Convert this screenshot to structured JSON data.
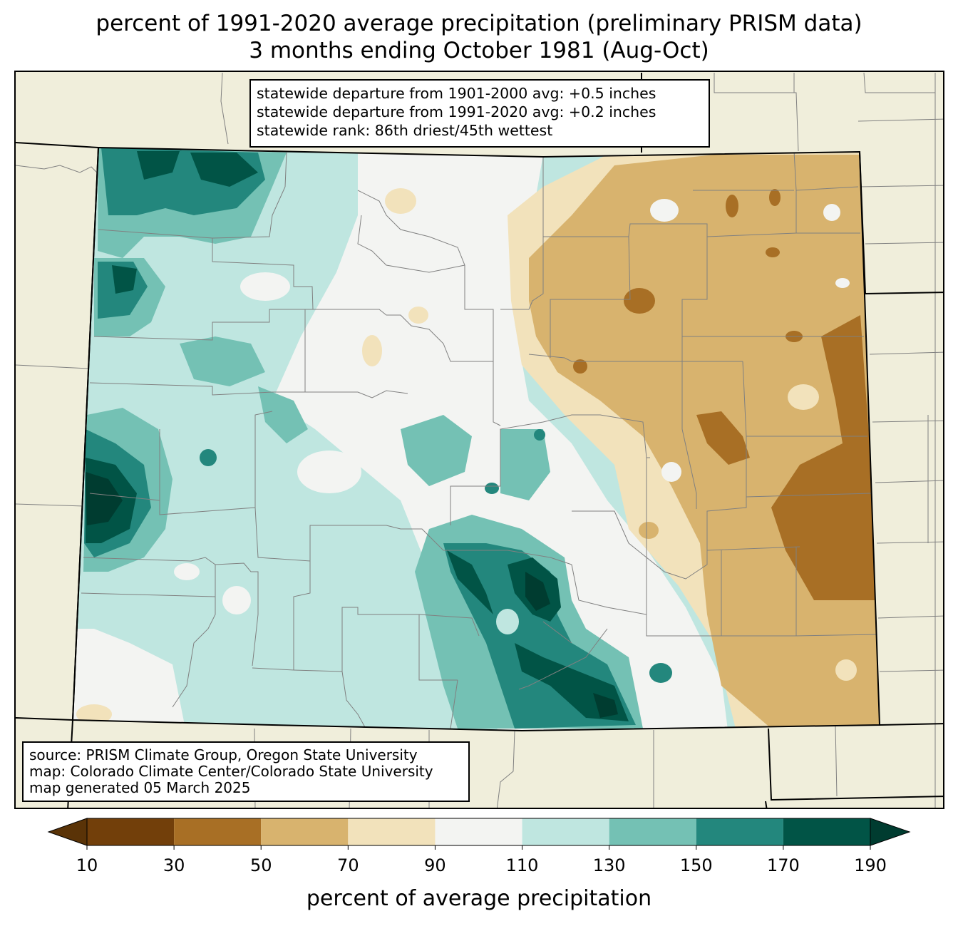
{
  "title": {
    "line1": "percent of 1991-2020 average precipitation (preliminary PRISM data)",
    "line2": "3 months ending October 1981 (Aug-Oct)"
  },
  "stats": {
    "line1": "statewide departure from 1901-2000 avg: +0.5 inches",
    "line2": "statewide departure from 1991-2020 avg: +0.2 inches",
    "line3": "statewide rank: 86th driest/45th wettest"
  },
  "source": {
    "line1": "source: PRISM Climate Group, Oregon State University",
    "line2": "map: Colorado Climate Center/Colorado State University",
    "line3": "map generated 05 March 2025"
  },
  "colorbar": {
    "label": "percent of average precipitation",
    "ticks": [
      "10",
      "30",
      "50",
      "70",
      "90",
      "110",
      "130",
      "150",
      "170",
      "190"
    ],
    "colors": [
      "#5a3307",
      "#723f0a",
      "#a86f25",
      "#d8b36e",
      "#f2e2bb",
      "#f3f4f2",
      "#bfe6e0",
      "#74c1b4",
      "#23877d",
      "#015446",
      "#003c30"
    ]
  },
  "colors": {
    "background": "#f0eedb",
    "state_border": "#000000",
    "county_lines": "#808080"
  }
}
